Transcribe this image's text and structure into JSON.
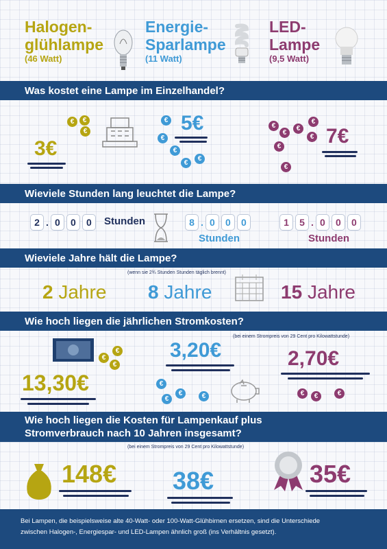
{
  "lamps": {
    "halogen": {
      "name_line1": "Halogen-",
      "name_line2": "glühlampe",
      "watt": "(46 Watt)"
    },
    "energie": {
      "name_line1": "Energie-",
      "name_line2": "Sparlampe",
      "watt": "(11 Watt)"
    },
    "led": {
      "name_line1": "LED-",
      "name_line2": "Lampe",
      "watt": "(9,5 Watt)"
    }
  },
  "sections": {
    "cost": {
      "heading": "Was kostet eine Lampe im Einzelhandel?",
      "halogen": "3€",
      "energie": "5€",
      "led": "7€"
    },
    "hours": {
      "heading": "Wieviele Stunden lang leuchtet die Lampe?",
      "unit": "Stunden",
      "halogen_digits": [
        "2",
        ".",
        "0",
        "0",
        "0"
      ],
      "energie_digits": [
        "8",
        ".",
        "0",
        "0",
        "0"
      ],
      "led_digits": [
        "1",
        "5",
        ".",
        "0",
        "0",
        "0"
      ]
    },
    "years": {
      "heading": "Wieviele Jahre hält die Lampe?",
      "note": "(wenn sie 2¾ Stunden  Stunden täglich brennt)",
      "halogen_num": "2",
      "energie_num": "8",
      "led_num": "15",
      "unit": "Jahre"
    },
    "power": {
      "heading": "Wie hoch liegen die jährlichen Stromkosten?",
      "note": "(bei einem Strompreis von 29 Cent pro Kilowattstunde)",
      "halogen": "13,30€",
      "energie": "3,20€",
      "led": "2,70€"
    },
    "total": {
      "heading_line1": "Wie hoch liegen die Kosten für Lampenkauf plus",
      "heading_line2": "Stromverbrauch nach 10 Jahren insgesamt?",
      "note": "(bei einem Strompreis von 29 Cent pro Kilowattstunde)",
      "halogen": "148€",
      "energie": "38€",
      "led": "35€"
    }
  },
  "coin_symbol": "€",
  "footer": {
    "line1": "Bei Lampen, die beispielsweise alte 40-Watt- oder 100-Watt-Glühbirnen ersetzen, sind die Unterschiede",
    "line2": "zwischen Halogen-, Energiespar- und LED-Lampen ähnlich groß (ins Verhältnis gesetzt)."
  },
  "colors": {
    "halogen": "#b6a512",
    "energie": "#3f9ad6",
    "led": "#8d3b6f",
    "band": "#1d4a7e",
    "ink": "#1f2f5c"
  },
  "icons": [
    "halogen-bulb-icon",
    "cfl-bulb-icon",
    "led-bulb-icon",
    "cash-register-icon",
    "hourglass-icon",
    "calendar-icon",
    "banknote-icon",
    "piggy-bank-icon",
    "money-bag-icon",
    "award-rosette-icon",
    "euro-coin-icon"
  ]
}
